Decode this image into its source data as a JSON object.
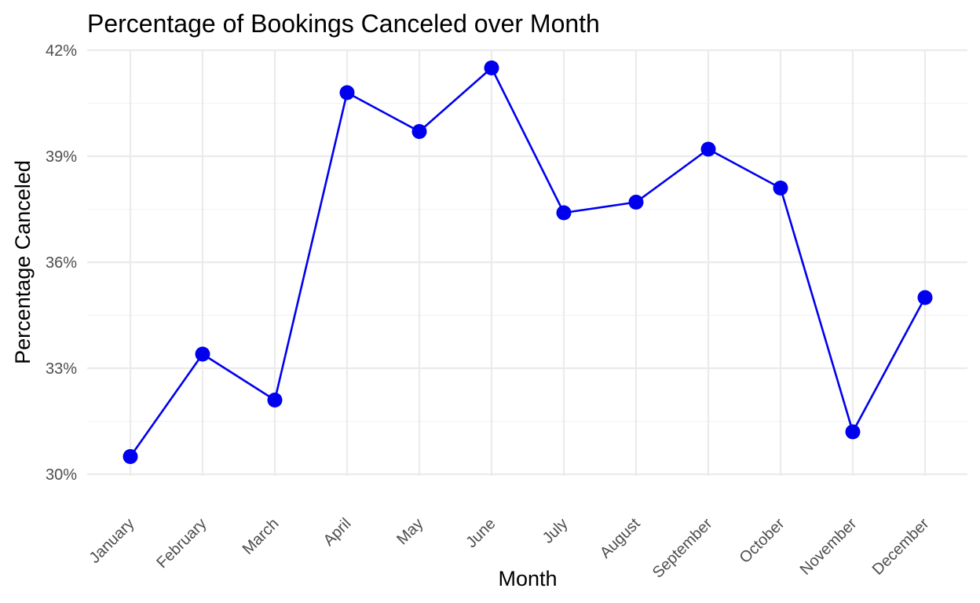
{
  "chart_data": {
    "type": "line",
    "title": "Percentage of Bookings Canceled over Month",
    "xlabel": "Month",
    "ylabel": "Percentage Canceled",
    "categories": [
      "January",
      "February",
      "March",
      "April",
      "May",
      "June",
      "July",
      "August",
      "September",
      "October",
      "November",
      "December"
    ],
    "series": [
      {
        "values": [
          30.5,
          33.4,
          32.1,
          40.8,
          39.7,
          41.5,
          37.4,
          37.7,
          39.2,
          38.1,
          31.2,
          35.0
        ],
        "color": "#0000ee",
        "markers": true
      }
    ],
    "ylim": [
      30,
      42
    ],
    "yticks": [
      30,
      33,
      36,
      39,
      42
    ],
    "ytick_labels": [
      "30%",
      "33%",
      "36%",
      "39%",
      "42%"
    ],
    "grid": true,
    "legend": "none"
  }
}
